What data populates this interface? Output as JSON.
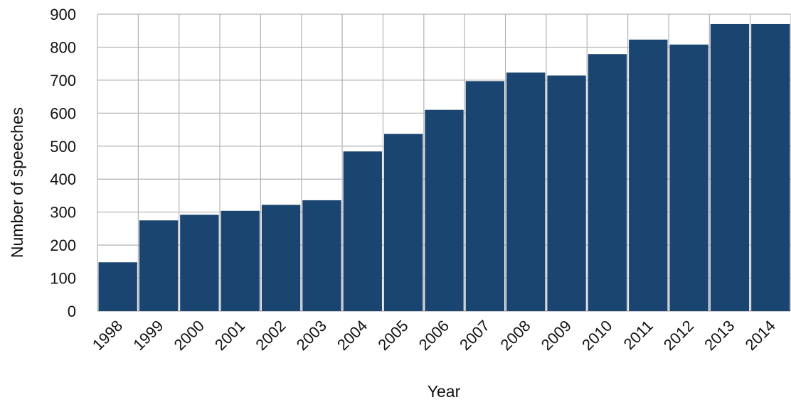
{
  "chart_data": {
    "type": "bar",
    "categories": [
      "1998",
      "1999",
      "2000",
      "2001",
      "2002",
      "2003",
      "2004",
      "2005",
      "2006",
      "2007",
      "2008",
      "2009",
      "2010",
      "2011",
      "2012",
      "2013",
      "2014"
    ],
    "values": [
      148,
      275,
      292,
      304,
      322,
      336,
      484,
      537,
      610,
      697,
      723,
      714,
      779,
      823,
      808,
      870,
      870
    ],
    "title": "",
    "xlabel": "Year",
    "ylabel": "Number of speeches",
    "ylim": [
      0,
      900
    ],
    "yticks": [
      0,
      100,
      200,
      300,
      400,
      500,
      600,
      700,
      800,
      900
    ],
    "grid": true,
    "bar_color": "#1a4570",
    "grid_color": "#b3b3b3"
  }
}
